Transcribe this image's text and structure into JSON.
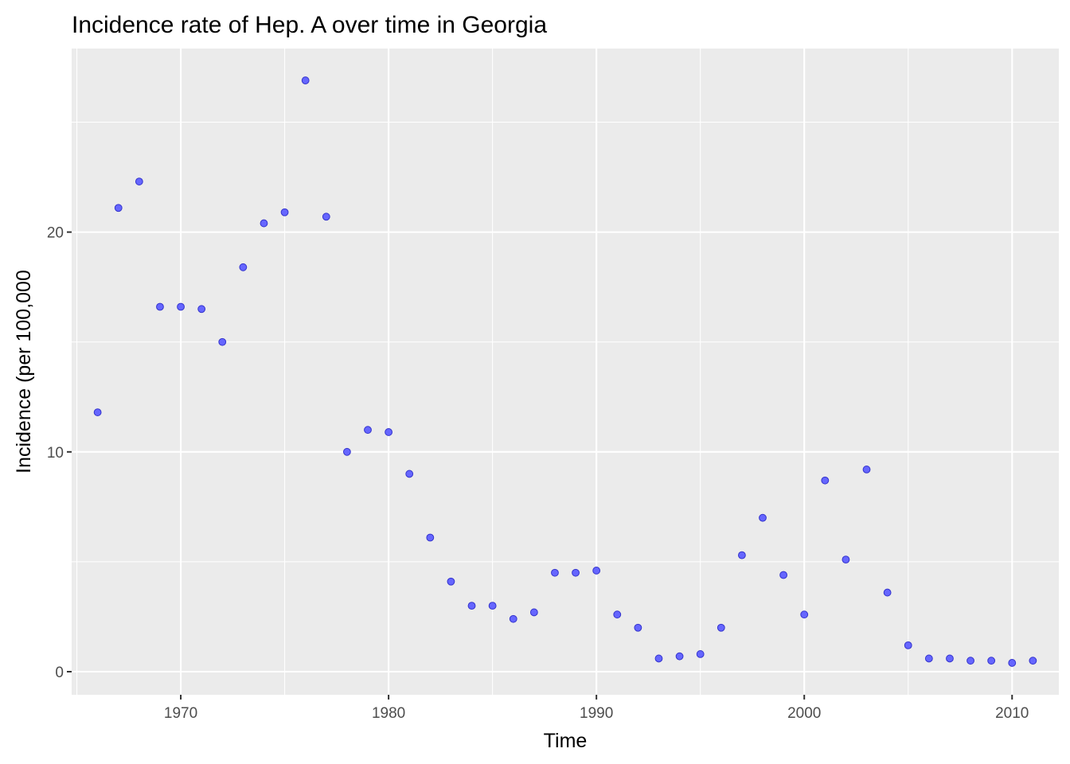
{
  "chart_data": {
    "type": "scatter",
    "title": "Incidence rate of Hep. A over time in Georgia",
    "xlabel": "Time",
    "ylabel": "Incidence (per 100,000",
    "xlim": [
      1964.75,
      2012.25
    ],
    "ylim": [
      -1.05,
      28.35
    ],
    "x_ticks": [
      1970,
      1980,
      1990,
      2000,
      2010
    ],
    "x_minor_ticks": [
      1965,
      1975,
      1985,
      1995,
      2005
    ],
    "y_ticks": [
      0,
      10,
      20
    ],
    "y_minor_ticks": [
      5,
      15,
      25
    ],
    "grid": true,
    "point_fill": "#6666ff",
    "point_stroke": "#3333cc",
    "panel_color": "#ebebeb",
    "x": [
      1966,
      1967,
      1968,
      1969,
      1970,
      1971,
      1972,
      1973,
      1974,
      1975,
      1976,
      1977,
      1978,
      1979,
      1980,
      1981,
      1982,
      1983,
      1984,
      1985,
      1986,
      1987,
      1988,
      1989,
      1990,
      1991,
      1992,
      1993,
      1994,
      1995,
      1996,
      1997,
      1998,
      1999,
      2000,
      2001,
      2002,
      2003,
      2004,
      2005,
      2006,
      2007,
      2008,
      2009,
      2010,
      2011
    ],
    "y": [
      11.8,
      21.1,
      22.3,
      16.6,
      16.6,
      16.5,
      15.0,
      18.4,
      20.4,
      20.9,
      26.9,
      20.7,
      10.0,
      11.0,
      10.9,
      9.0,
      6.1,
      4.1,
      3.0,
      3.0,
      2.4,
      2.7,
      4.5,
      4.5,
      4.6,
      2.6,
      2.0,
      0.6,
      0.7,
      0.8,
      2.0,
      5.3,
      7.0,
      4.4,
      2.6,
      8.7,
      5.1,
      9.2,
      3.6,
      1.2,
      0.6,
      0.6,
      0.5,
      0.5,
      0.4,
      0.5
    ]
  }
}
